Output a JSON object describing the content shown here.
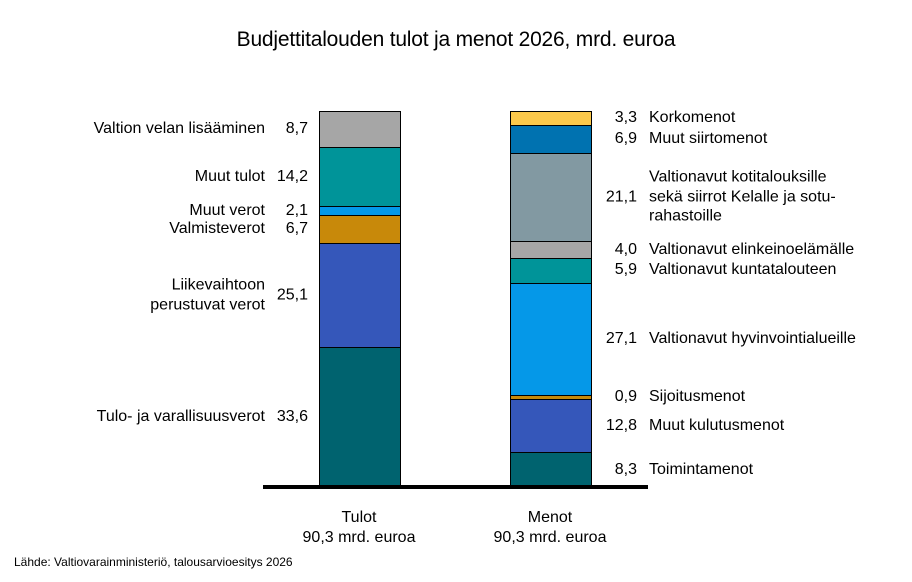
{
  "title": "Budjettitalouden tulot ja menot 2026, mrd. euroa",
  "source": "Lähde: Valtiovarainministeriö, talousarvioesitys 2026",
  "chart_data": {
    "type": "bar",
    "subtype": "stacked",
    "orientation": "vertical",
    "unit": "mrd. euroa",
    "grid": false,
    "legend": "none",
    "bars": [
      {
        "name": "Tulot",
        "axis_label": "Tulot",
        "axis_sublabel": "90,3 mrd. euroa",
        "total": 90.3,
        "label_side": "left",
        "segments": [
          {
            "label": "Valtion velan lisääminen",
            "value": 8.7,
            "display": "8,7",
            "color": "#a6a6a6"
          },
          {
            "label": "Muut tulot",
            "value": 14.2,
            "display": "14,2",
            "color": "#009499"
          },
          {
            "label": "Muut verot",
            "value": 2.1,
            "display": "2,1",
            "color": "#0598e8"
          },
          {
            "label": "Valmisteverot",
            "value": 6.7,
            "display": "6,7",
            "color": "#c8890a"
          },
          {
            "label": "Liikevaihtoon\nperustuvat verot",
            "value": 25.1,
            "display": "25,1",
            "color": "#3557ba"
          },
          {
            "label": "Tulo- ja varallisuusverot",
            "value": 33.6,
            "display": "33,6",
            "color": "#00636f"
          }
        ]
      },
      {
        "name": "Menot",
        "axis_label": "Menot",
        "axis_sublabel": "90,3 mrd. euroa",
        "total": 90.3,
        "label_side": "right",
        "segments": [
          {
            "label": "Korkomenot",
            "value": 3.3,
            "display": "3,3",
            "color": "#fbc84b"
          },
          {
            "label": "Muut siirtomenot",
            "value": 6.9,
            "display": "6,9",
            "color": "#0072b0"
          },
          {
            "label": "Valtionavut kotitalouksille\nsekä siirrot Kelalle ja sotu-\nrahastoille",
            "value": 21.1,
            "display": "21,1",
            "color": "#8299a2"
          },
          {
            "label": "Valtionavut  elinkeinoelämälle",
            "value": 4.0,
            "display": "4,0",
            "color": "#a6a6a6"
          },
          {
            "label": "Valtionavut kuntatalouteen",
            "value": 5.9,
            "display": "5,9",
            "color": "#009499"
          },
          {
            "label": "Valtionavut hyvinvointialueille",
            "value": 27.1,
            "display": "27,1",
            "color": "#0598e8"
          },
          {
            "label": "Sijoitusmenot",
            "value": 0.9,
            "display": "0,9",
            "color": "#c8890a"
          },
          {
            "label": "Muut kulutusmenot",
            "value": 12.8,
            "display": "12,8",
            "color": "#3557ba"
          },
          {
            "label": "Toimintamenot",
            "value": 8.3,
            "display": "8,3",
            "color": "#00636f"
          }
        ]
      }
    ]
  }
}
